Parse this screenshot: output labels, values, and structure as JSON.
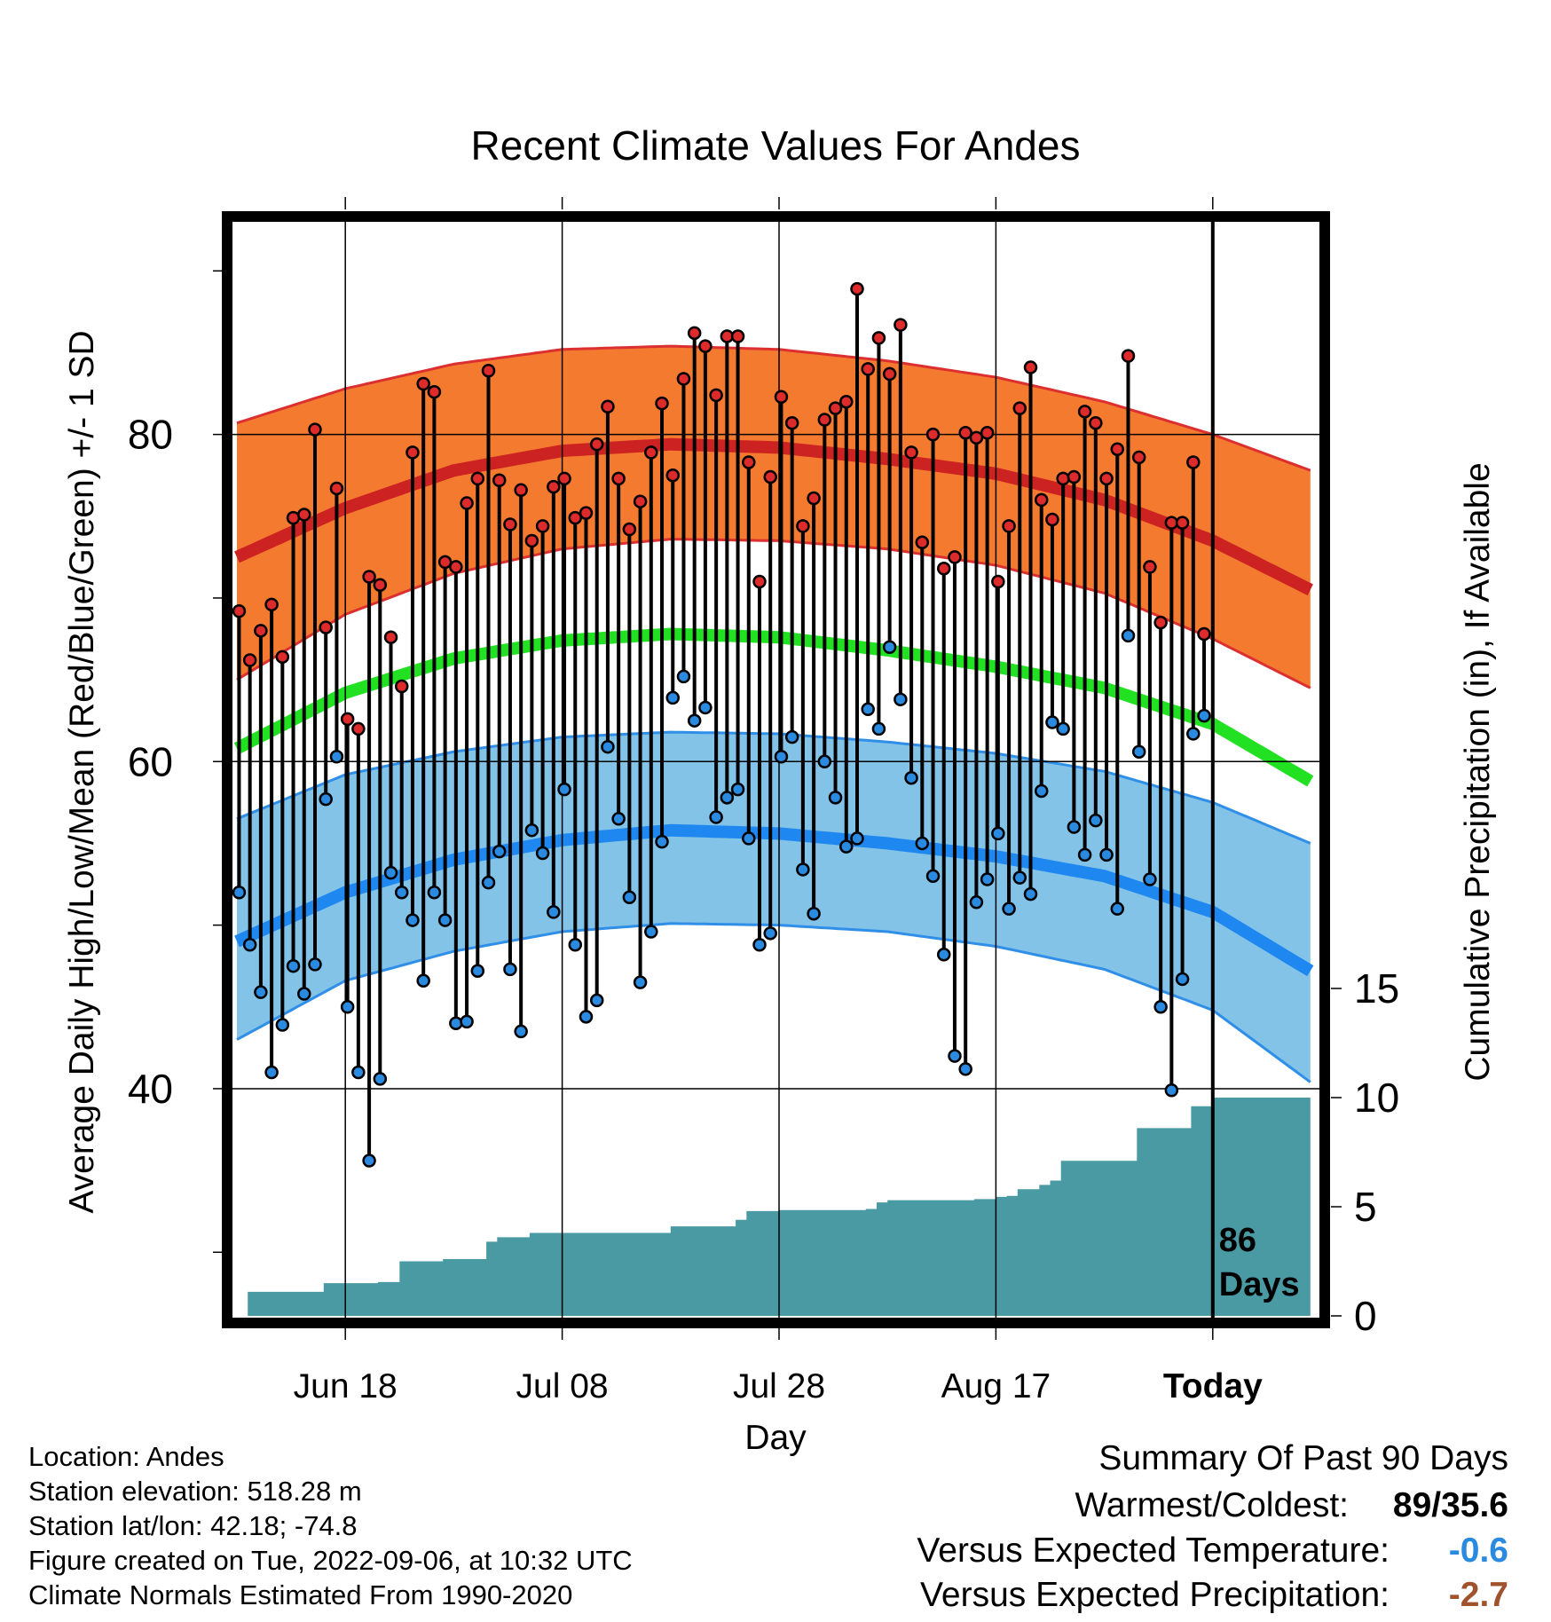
{
  "chart_data": {
    "type": "line",
    "title": "Recent Climate Values For Andes",
    "xlabel": "Day",
    "ylabel": "Average Daily High/Low/Mean (Red/Blue/Green) +/- 1 SD",
    "y2label": "Cumulative Precipitation (in), If Available",
    "x_tick_labels": [
      "Jun 18",
      "Jul 08",
      "Jul 28",
      "Aug 17",
      "Today"
    ],
    "x_tick_day_offsets": [
      10,
      30,
      50,
      70,
      90
    ],
    "x_range_days": [
      0,
      99
    ],
    "ylim": [
      26,
      93
    ],
    "y_ticks": [
      40,
      60,
      80
    ],
    "y2lim": [
      0,
      20
    ],
    "y2_ticks": [
      0,
      5,
      10,
      15
    ],
    "today_label": "86\nDays",
    "observed_days": 90,
    "normal_high_mean": [
      72.5,
      75.5,
      77.8,
      79.0,
      79.4,
      79.2,
      78.5,
      77.6,
      76.0,
      73.5,
      70.5
    ],
    "normal_high_lower": [
      65.0,
      69.0,
      71.5,
      73.0,
      73.6,
      73.5,
      73.0,
      72.0,
      70.3,
      67.5,
      64.5
    ],
    "normal_high_upper": [
      80.7,
      82.8,
      84.3,
      85.2,
      85.4,
      85.2,
      84.5,
      83.5,
      82.0,
      80.0,
      77.8
    ],
    "normal_mean": [
      60.8,
      64.2,
      66.3,
      67.4,
      67.8,
      67.6,
      66.8,
      65.8,
      64.5,
      62.3,
      58.8
    ],
    "normal_low_mean": [
      49.0,
      52.0,
      54.0,
      55.2,
      55.8,
      55.6,
      55.0,
      54.2,
      53.0,
      50.8,
      47.2
    ],
    "normal_low_lower": [
      43.0,
      46.6,
      48.4,
      49.6,
      50.1,
      50.0,
      49.6,
      48.7,
      47.3,
      44.8,
      40.4
    ],
    "normal_low_upper": [
      56.5,
      59.2,
      60.6,
      61.5,
      61.8,
      61.7,
      61.2,
      60.5,
      59.4,
      57.5,
      55.0
    ],
    "normal_x_days": [
      0,
      10,
      20,
      30,
      40,
      50,
      60,
      70,
      80,
      90,
      99
    ],
    "daily_high": [
      69.2,
      66.2,
      68.0,
      69.6,
      66.4,
      74.9,
      75.1,
      80.3,
      68.2,
      76.7,
      62.6,
      62.0,
      71.3,
      70.8,
      67.6,
      64.6,
      78.9,
      83.1,
      82.6,
      72.2,
      71.9,
      75.8,
      77.3,
      83.9,
      77.2,
      74.5,
      76.6,
      73.5,
      74.4,
      76.8,
      77.3,
      74.9,
      75.2,
      79.4,
      81.7,
      77.3,
      74.2,
      75.9,
      78.9,
      81.9,
      77.5,
      83.4,
      86.2,
      85.4,
      82.4,
      86.0,
      86.0,
      78.3,
      71.0,
      77.4,
      82.3,
      80.7,
      74.4,
      76.1,
      80.9,
      81.6,
      82.0,
      88.9,
      84.0,
      85.9,
      83.7,
      86.7,
      78.9,
      73.4,
      80.0,
      71.8,
      72.5,
      80.1,
      79.8,
      80.1,
      71.0,
      74.4,
      81.6,
      84.1,
      76.0,
      74.8,
      77.3,
      77.4,
      81.4,
      80.7,
      77.3,
      79.1,
      84.8,
      78.6,
      71.9,
      68.5,
      74.6,
      74.6,
      78.3,
      67.8
    ],
    "daily_low": [
      52.0,
      48.8,
      45.9,
      41.0,
      43.9,
      47.5,
      45.8,
      47.6,
      57.7,
      60.3,
      45.0,
      41.0,
      35.6,
      40.6,
      53.2,
      52.0,
      50.3,
      46.6,
      52.0,
      50.3,
      44.0,
      44.1,
      47.2,
      52.6,
      54.5,
      47.3,
      43.5,
      55.8,
      54.4,
      50.8,
      58.3,
      48.8,
      44.4,
      45.4,
      60.9,
      56.5,
      51.7,
      46.5,
      49.6,
      55.1,
      63.9,
      65.2,
      62.5,
      63.3,
      56.6,
      57.8,
      58.3,
      55.3,
      48.8,
      49.5,
      60.3,
      61.5,
      53.4,
      50.7,
      60.0,
      57.8,
      54.8,
      55.3,
      63.2,
      62.0,
      67.0,
      63.8,
      59.0,
      55.0,
      53.0,
      48.2,
      42.0,
      41.2,
      51.4,
      52.8,
      55.6,
      51.0,
      52.9,
      51.9,
      58.2,
      62.4,
      62.0,
      56.0,
      54.3,
      56.4,
      54.3,
      51.0,
      67.7,
      60.6,
      52.8,
      45.0,
      39.9,
      46.7,
      61.7,
      62.8
    ],
    "cumulative_precip": [
      0.0,
      1.1,
      1.1,
      1.1,
      1.1,
      1.1,
      1.1,
      1.1,
      1.5,
      1.5,
      1.5,
      1.5,
      1.5,
      1.55,
      1.55,
      2.5,
      2.5,
      2.5,
      2.5,
      2.6,
      2.6,
      2.6,
      2.6,
      3.4,
      3.6,
      3.6,
      3.6,
      3.8,
      3.8,
      3.8,
      3.8,
      3.8,
      3.8,
      3.8,
      3.8,
      3.8,
      3.8,
      3.8,
      3.8,
      3.8,
      4.1,
      4.1,
      4.1,
      4.1,
      4.1,
      4.1,
      4.4,
      4.8,
      4.8,
      4.8,
      4.85,
      4.85,
      4.85,
      4.85,
      4.85,
      4.85,
      4.85,
      4.85,
      4.9,
      5.2,
      5.3,
      5.3,
      5.3,
      5.3,
      5.3,
      5.3,
      5.3,
      5.3,
      5.35,
      5.35,
      5.45,
      5.5,
      5.8,
      5.8,
      6.0,
      6.2,
      7.1,
      7.1,
      7.1,
      7.1,
      7.1,
      7.1,
      7.1,
      8.6,
      8.6,
      8.6,
      8.6,
      8.6,
      9.6,
      9.6,
      10.0
    ]
  },
  "colors": {
    "high_band": "#f47a30",
    "high_edge": "#dc2f2f",
    "high_mean": "#cc2222",
    "mean_line": "#22e022",
    "low_band": "#84c3e8",
    "low_edge": "#2f8fe8",
    "low_mean": "#1e88f0",
    "precip_fill": "#4a9aa4",
    "high_dot": "#dd2a2a",
    "low_dot": "#2a8ae0",
    "vs_temp": "#2a8ae0",
    "vs_precip": "#a0522d"
  },
  "footer": {
    "location": "Location: Andes",
    "elevation": "Station elevation: 518.28 m",
    "latlon": "Station lat/lon: 42.18; -74.8",
    "created": "Figure created on Tue, 2022-09-06, at 10:32 UTC",
    "normals": "Climate Normals Estimated From 1990-2020"
  },
  "summary": {
    "title": "Summary Of Past 90 Days",
    "warmest_label": "Warmest/Coldest:",
    "warmest_value": "89/35.6",
    "vs_temp_label": "Versus Expected Temperature:",
    "vs_temp_value": "-0.6",
    "vs_precip_label": "Versus Expected Precipitation:",
    "vs_precip_value": "-2.7"
  }
}
